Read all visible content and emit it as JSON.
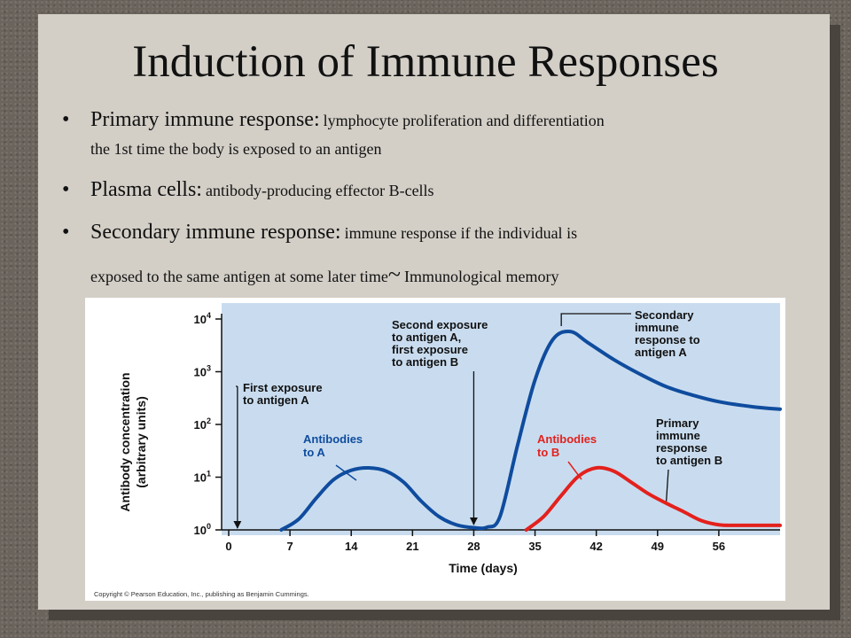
{
  "slide": {
    "title": "Induction of Immune Responses",
    "bullets": [
      {
        "term": "Primary immune response:",
        "definition_line1": "lymphocyte proliferation and differentiation",
        "definition_line2": "the 1st time the body is exposed to an antigen"
      },
      {
        "term": "Plasma cells:",
        "definition": "antibody-producing effector B-cells"
      },
      {
        "term": "Secondary immune response:",
        "definition_line1": "immune response if the individual is",
        "definition_line2": "exposed to the same antigen at some later time",
        "tilde": "~",
        "extra": "Immunological memory"
      }
    ]
  },
  "colors": {
    "slide_panel": "#d3cfc7",
    "plot_background": "#c9dcef",
    "series_a": "#0f4c9e",
    "series_b": "#e3211d"
  },
  "chart_data": {
    "type": "line",
    "title": "",
    "xlabel": "Time (days)",
    "ylabel": "Antibody concentration (arbitrary units)",
    "x_ticks": [
      0,
      7,
      14,
      21,
      28,
      35,
      42,
      49,
      56
    ],
    "xlim": [
      0,
      63
    ],
    "y_scale": "log",
    "y_ticks": [
      {
        "base": "10",
        "exp": "0",
        "value": 1
      },
      {
        "base": "10",
        "exp": "1",
        "value": 10
      },
      {
        "base": "10",
        "exp": "2",
        "value": 100
      },
      {
        "base": "10",
        "exp": "3",
        "value": 1000
      },
      {
        "base": "10",
        "exp": "4",
        "value": 10000
      }
    ],
    "ylim": [
      1,
      10000
    ],
    "grid": false,
    "series": [
      {
        "name": "Antibodies to A",
        "label_lines": [
          "Antibodies",
          "to A"
        ],
        "color": "#0f4c9e",
        "points": [
          [
            6,
            1.0
          ],
          [
            8,
            1.6
          ],
          [
            10,
            4.0
          ],
          [
            12,
            9.0
          ],
          [
            14,
            13.5
          ],
          [
            16,
            15.0
          ],
          [
            18,
            13.0
          ],
          [
            20,
            8.0
          ],
          [
            22,
            3.5
          ],
          [
            24,
            1.8
          ],
          [
            26,
            1.25
          ],
          [
            28,
            1.1
          ],
          [
            29.5,
            1.12
          ],
          [
            31,
            1.8
          ],
          [
            33,
            40
          ],
          [
            35,
            700
          ],
          [
            37,
            4000
          ],
          [
            39,
            5800
          ],
          [
            41,
            3600
          ],
          [
            44,
            1700
          ],
          [
            47,
            900
          ],
          [
            50,
            520
          ],
          [
            53,
            360
          ],
          [
            56,
            270
          ],
          [
            60,
            215
          ],
          [
            63,
            195
          ]
        ]
      },
      {
        "name": "Antibodies to B",
        "label_lines": [
          "Antibodies",
          "to B"
        ],
        "color": "#e3211d",
        "points": [
          [
            34,
            1.0
          ],
          [
            36,
            1.8
          ],
          [
            38,
            4.5
          ],
          [
            40,
            10.5
          ],
          [
            42,
            15.0
          ],
          [
            44,
            13.0
          ],
          [
            46,
            8.0
          ],
          [
            48,
            4.8
          ],
          [
            50,
            3.2
          ],
          [
            52,
            2.2
          ],
          [
            54,
            1.5
          ],
          [
            56,
            1.25
          ],
          [
            58,
            1.22
          ],
          [
            63,
            1.22
          ]
        ]
      }
    ],
    "annotations": [
      {
        "lines": [
          "First exposure",
          "to antigen A"
        ],
        "target_day": 1,
        "target_value": 1
      },
      {
        "lines": [
          "Second exposure",
          "to antigen A,",
          "first exposure",
          "to antigen B"
        ],
        "target_day": 28,
        "target_value": 1
      },
      {
        "lines": [
          "Secondary",
          "immune",
          "response to",
          "antigen A"
        ],
        "target_day": 38,
        "target_value": 10000
      },
      {
        "lines": [
          "Primary",
          "immune",
          "response",
          "to antigen B"
        ],
        "target_day": 50,
        "target_value": 3
      }
    ]
  },
  "copyright": "Copyright © Pearson Education, Inc., publishing as Benjamin Cummings."
}
